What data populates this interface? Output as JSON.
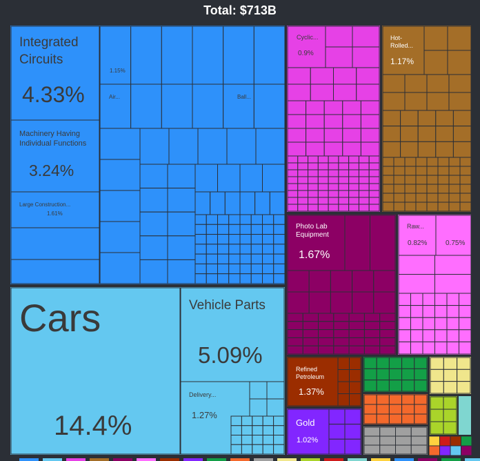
{
  "chart_data": {
    "type": "treemap",
    "title": "Total: $713B",
    "total": "$713B",
    "colors": {
      "machinery": "#2e91fa",
      "transportation": "#64c8f0",
      "chemicals": "#e641e6",
      "metals": "#a46e28",
      "instruments": "#8c0064",
      "plastics": "#ff6eff",
      "mineral": "#9b2d00",
      "gold": "#8226ff",
      "vegetable": "#139f47",
      "misc": "#f4692c",
      "textiles": "#a0a0a0",
      "foodstuffs": "#f0e68c",
      "stone": "#aad42a",
      "other": "#cf1b1b",
      "background": "#2b2f36"
    },
    "labeled_items": [
      {
        "name": "Integrated Circuits",
        "share": "4.33%",
        "group": "machinery"
      },
      {
        "name": "Machinery Having Individual Functions",
        "share": "3.24%",
        "group": "machinery"
      },
      {
        "name": "Large Construction...",
        "share": "1.61%",
        "group": "machinery"
      },
      {
        "name": "",
        "share": "1.15%",
        "group": "machinery"
      },
      {
        "name": "Air...",
        "share": "",
        "group": "machinery"
      },
      {
        "name": "Ball...",
        "share": "",
        "group": "machinery"
      },
      {
        "name": "Cars",
        "share": "14.4%",
        "group": "transportation"
      },
      {
        "name": "Vehicle Parts",
        "share": "5.09%",
        "group": "transportation"
      },
      {
        "name": "Delivery...",
        "share": "1.27%",
        "group": "transportation"
      },
      {
        "name": "Cyclic...",
        "share": "0.9%",
        "group": "chemicals"
      },
      {
        "name": "Hot-Rolled...",
        "share": "1.17%",
        "group": "metals"
      },
      {
        "name": "Photo Lab Equipment",
        "share": "1.67%",
        "group": "instruments"
      },
      {
        "name": "Raw...",
        "share": "0.82%",
        "group": "plastics"
      },
      {
        "name": "",
        "share": "0.75%",
        "group": "plastics"
      },
      {
        "name": "Refined Petroleum",
        "share": "1.37%",
        "group": "mineral"
      },
      {
        "name": "Gold",
        "share": "1.02%",
        "group": "gold"
      }
    ]
  }
}
